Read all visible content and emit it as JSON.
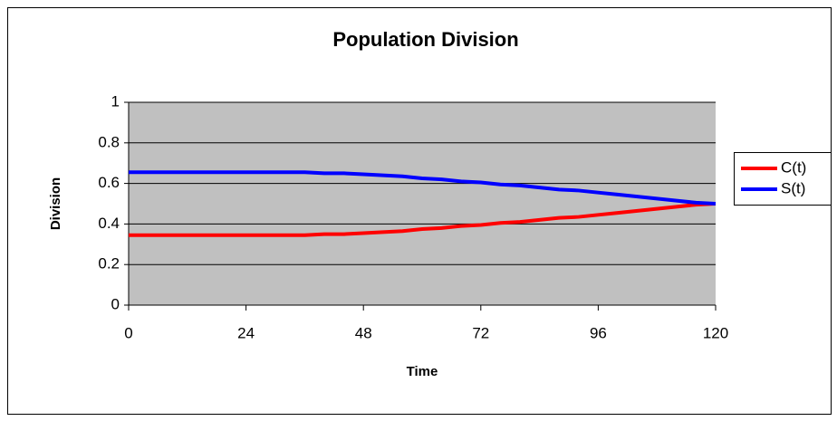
{
  "chart_data": {
    "type": "line",
    "title": "Population Division",
    "x_label": "Time",
    "y_label": "Division",
    "x": [
      0,
      4,
      8,
      12,
      16,
      20,
      24,
      28,
      32,
      36,
      40,
      44,
      48,
      52,
      56,
      60,
      64,
      68,
      72,
      76,
      80,
      84,
      88,
      92,
      96,
      100,
      104,
      108,
      112,
      116,
      120
    ],
    "series": [
      {
        "name": "C(t)",
        "color": "#ff0000",
        "values": [
          0.345,
          0.345,
          0.345,
          0.345,
          0.345,
          0.345,
          0.345,
          0.345,
          0.345,
          0.345,
          0.35,
          0.35,
          0.355,
          0.36,
          0.365,
          0.375,
          0.38,
          0.39,
          0.395,
          0.405,
          0.41,
          0.42,
          0.43,
          0.435,
          0.445,
          0.455,
          0.465,
          0.475,
          0.485,
          0.495,
          0.5
        ]
      },
      {
        "name": "S(t)",
        "color": "#0000ff",
        "values": [
          0.655,
          0.655,
          0.655,
          0.655,
          0.655,
          0.655,
          0.655,
          0.655,
          0.655,
          0.655,
          0.65,
          0.65,
          0.645,
          0.64,
          0.635,
          0.625,
          0.62,
          0.61,
          0.605,
          0.595,
          0.59,
          0.58,
          0.57,
          0.565,
          0.555,
          0.545,
          0.535,
          0.525,
          0.515,
          0.505,
          0.5
        ]
      }
    ],
    "xlim": [
      0,
      120
    ],
    "xticks": [
      0,
      24,
      48,
      72,
      96,
      120
    ],
    "ylim": [
      0,
      1
    ],
    "yticks": [
      0,
      0.2,
      0.4,
      0.6,
      0.8,
      1
    ],
    "grid": true,
    "legend": "right",
    "plot_background": "#c0c0c0"
  }
}
